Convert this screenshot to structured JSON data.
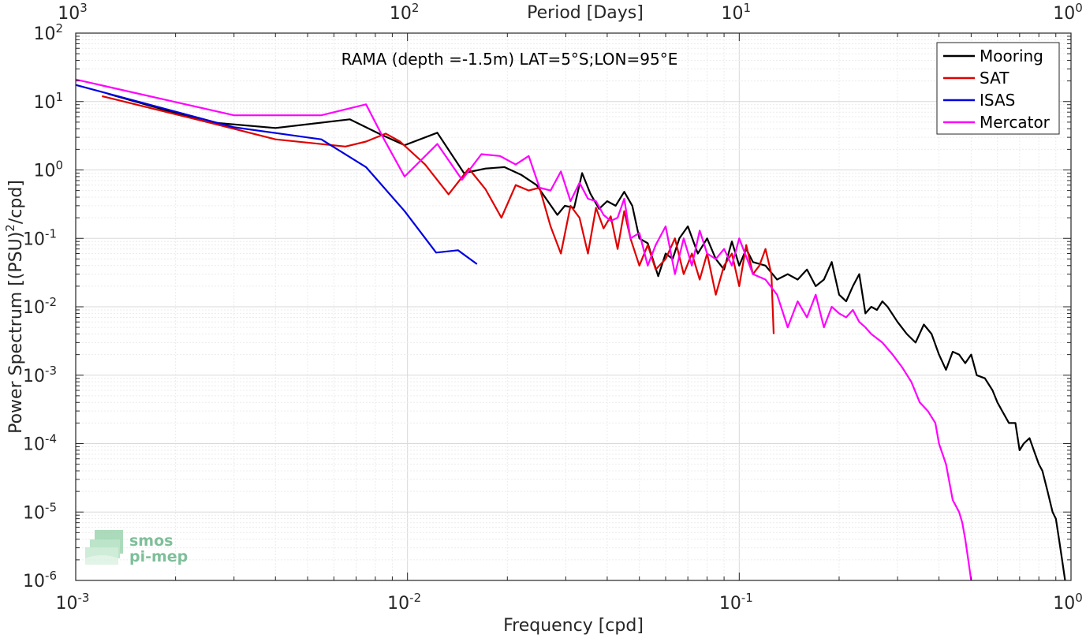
{
  "chart_data": {
    "type": "line",
    "title": "RAMA (depth =-1.5m) LAT=5°S;LON=95°E",
    "xlabel": "Frequency [cpd]",
    "ylabel_main": "Power Spectrum [(PSU)",
    "ylabel_sup": "2",
    "ylabel_tail": "/cpd]",
    "top_xlabel": "Period [Days]",
    "x_scale": "log",
    "y_scale": "log",
    "xlim": [
      0.001,
      1
    ],
    "ylim": [
      1e-06,
      100
    ],
    "grid": true,
    "legend_position": "top-right",
    "x_ticks": [
      {
        "base": "10",
        "exp": "-3"
      },
      {
        "base": "10",
        "exp": "-2"
      },
      {
        "base": "10",
        "exp": "-1"
      },
      {
        "base": "10",
        "exp": "0"
      }
    ],
    "top_x_ticks": [
      {
        "base": "10",
        "exp": "3"
      },
      {
        "base": "10",
        "exp": "2"
      },
      {
        "base": "10",
        "exp": "1"
      },
      {
        "base": "10",
        "exp": "0"
      }
    ],
    "y_ticks": [
      {
        "base": "10",
        "exp": "2"
      },
      {
        "base": "10",
        "exp": "1"
      },
      {
        "base": "10",
        "exp": "0"
      },
      {
        "base": "10",
        "exp": "-1"
      },
      {
        "base": "10",
        "exp": "-2"
      },
      {
        "base": "10",
        "exp": "-3"
      },
      {
        "base": "10",
        "exp": "-4"
      },
      {
        "base": "10",
        "exp": "-5"
      },
      {
        "base": "10",
        "exp": "-6"
      }
    ],
    "series": [
      {
        "name": "Mooring",
        "color": "#000000",
        "x": [
          0.00125,
          0.0025,
          0.004,
          0.0067,
          0.0082,
          0.0098,
          0.0123,
          0.0148,
          0.0172,
          0.0196,
          0.022,
          0.0245,
          0.0283,
          0.0298,
          0.0318,
          0.0336,
          0.0356,
          0.0378,
          0.04,
          0.0424,
          0.045,
          0.0476,
          0.05,
          0.053,
          0.057,
          0.06,
          0.063,
          0.066,
          0.07,
          0.075,
          0.08,
          0.085,
          0.09,
          0.095,
          0.1,
          0.105,
          0.11,
          0.12,
          0.13,
          0.14,
          0.15,
          0.16,
          0.17,
          0.18,
          0.19,
          0.2,
          0.21,
          0.22,
          0.23,
          0.24,
          0.25,
          0.26,
          0.27,
          0.28,
          0.3,
          0.32,
          0.34,
          0.36,
          0.38,
          0.4,
          0.42,
          0.44,
          0.46,
          0.48,
          0.5,
          0.52,
          0.55,
          0.58,
          0.6,
          0.62,
          0.65,
          0.68,
          0.7,
          0.72,
          0.75,
          0.78,
          0.8,
          0.82,
          0.85,
          0.88,
          0.9,
          0.92,
          0.94,
          0.96
        ],
        "y": [
          13,
          5,
          4.1,
          5.5,
          3.4,
          2.3,
          3.5,
          0.9,
          1.05,
          1.1,
          0.85,
          0.6,
          0.22,
          0.3,
          0.28,
          0.9,
          0.45,
          0.27,
          0.35,
          0.3,
          0.48,
          0.3,
          0.1,
          0.085,
          0.028,
          0.06,
          0.05,
          0.1,
          0.15,
          0.06,
          0.1,
          0.05,
          0.035,
          0.09,
          0.04,
          0.07,
          0.045,
          0.04,
          0.025,
          0.03,
          0.025,
          0.035,
          0.02,
          0.025,
          0.045,
          0.015,
          0.012,
          0.02,
          0.03,
          0.008,
          0.01,
          0.009,
          0.012,
          0.01,
          0.006,
          0.004,
          0.003,
          0.0055,
          0.004,
          0.002,
          0.0012,
          0.0022,
          0.002,
          0.0015,
          0.002,
          0.001,
          0.0009,
          0.0006,
          0.0004,
          0.0003,
          0.0002,
          0.0002,
          8e-05,
          0.0001,
          0.00012,
          7e-05,
          5e-05,
          4e-05,
          2e-05,
          1e-05,
          8e-06,
          4e-06,
          2e-06,
          1e-06
        ]
      },
      {
        "name": "SAT",
        "color": "#e00000",
        "x": [
          0.0012,
          0.0025,
          0.004,
          0.0065,
          0.0075,
          0.0086,
          0.0095,
          0.0113,
          0.0133,
          0.0153,
          0.0172,
          0.0192,
          0.0212,
          0.0232,
          0.025,
          0.027,
          0.029,
          0.031,
          0.033,
          0.035,
          0.037,
          0.039,
          0.041,
          0.043,
          0.045,
          0.047,
          0.05,
          0.053,
          0.056,
          0.06,
          0.064,
          0.068,
          0.072,
          0.076,
          0.08,
          0.085,
          0.09,
          0.095,
          0.1,
          0.105,
          0.11,
          0.115,
          0.12,
          0.125,
          0.127
        ],
        "y": [
          12,
          5,
          2.8,
          2.2,
          2.6,
          3.4,
          2.6,
          1.2,
          0.44,
          1.05,
          0.52,
          0.2,
          0.6,
          0.5,
          0.55,
          0.15,
          0.06,
          0.3,
          0.2,
          0.06,
          0.28,
          0.14,
          0.21,
          0.07,
          0.25,
          0.1,
          0.04,
          0.08,
          0.035,
          0.05,
          0.1,
          0.03,
          0.06,
          0.025,
          0.06,
          0.015,
          0.04,
          0.06,
          0.02,
          0.08,
          0.03,
          0.04,
          0.07,
          0.03,
          0.004
        ]
      },
      {
        "name": "ISAS",
        "color": "#0000e0",
        "x": [
          0.001,
          0.003,
          0.0055,
          0.0075,
          0.0098,
          0.0122,
          0.0142,
          0.0162
        ],
        "y": [
          17.5,
          4.2,
          2.8,
          1.1,
          0.25,
          0.062,
          0.067,
          0.042
        ]
      },
      {
        "name": "Mercator",
        "color": "#ff00ff",
        "x": [
          0.001,
          0.003,
          0.0055,
          0.0075,
          0.0085,
          0.0098,
          0.0123,
          0.0146,
          0.0167,
          0.019,
          0.0212,
          0.0232,
          0.025,
          0.027,
          0.029,
          0.031,
          0.033,
          0.035,
          0.037,
          0.039,
          0.041,
          0.043,
          0.045,
          0.047,
          0.05,
          0.053,
          0.056,
          0.06,
          0.064,
          0.068,
          0.072,
          0.076,
          0.08,
          0.085,
          0.09,
          0.095,
          0.1,
          0.11,
          0.12,
          0.13,
          0.14,
          0.15,
          0.16,
          0.17,
          0.18,
          0.19,
          0.2,
          0.21,
          0.22,
          0.23,
          0.24,
          0.25,
          0.27,
          0.29,
          0.31,
          0.33,
          0.35,
          0.37,
          0.39,
          0.4,
          0.42,
          0.44,
          0.46,
          0.47,
          0.48,
          0.49,
          0.5
        ],
        "y": [
          21,
          6.3,
          6.3,
          9.1,
          2.8,
          0.8,
          2.4,
          0.72,
          1.7,
          1.6,
          1.2,
          1.6,
          0.55,
          0.5,
          0.95,
          0.35,
          0.65,
          0.38,
          0.35,
          0.22,
          0.18,
          0.2,
          0.38,
          0.1,
          0.12,
          0.04,
          0.08,
          0.15,
          0.03,
          0.1,
          0.04,
          0.13,
          0.06,
          0.05,
          0.07,
          0.04,
          0.1,
          0.03,
          0.025,
          0.015,
          0.005,
          0.012,
          0.007,
          0.015,
          0.005,
          0.01,
          0.008,
          0.007,
          0.009,
          0.006,
          0.005,
          0.004,
          0.003,
          0.002,
          0.0013,
          0.0008,
          0.0004,
          0.0003,
          0.0002,
          0.0001,
          5e-05,
          1.5e-05,
          1e-05,
          7e-06,
          4e-06,
          2e-06,
          1e-06
        ]
      }
    ]
  },
  "logo": {
    "line1": "smos",
    "line2": "pi-mep"
  }
}
